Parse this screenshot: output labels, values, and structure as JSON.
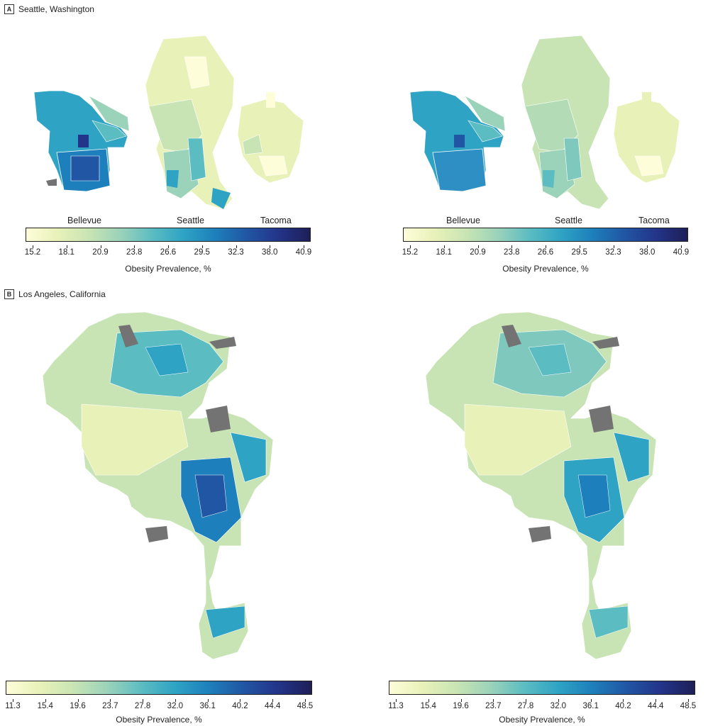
{
  "panelA": {
    "letter": "A",
    "title": "Seattle, Washington",
    "cities": [
      "Bellevue",
      "Seattle",
      "Tacoma"
    ],
    "colorbar": {
      "ticks": [
        "15.2",
        "18.1",
        "20.9",
        "23.8",
        "26.6",
        "29.5",
        "32.3",
        "38.0",
        "40.9"
      ],
      "label": "Obesity Prevalence, %"
    }
  },
  "panelB": {
    "letter": "B",
    "title": "Los Angeles, California",
    "colorbar": {
      "ticks": [
        "11.3",
        "15.4",
        "19.6",
        "23.7",
        "27.8",
        "32.0",
        "36.1",
        "40.2",
        "44.4",
        "48.5"
      ],
      "label": "Obesity Prevalence, %"
    }
  },
  "colors": {
    "ramp": [
      "#fdfdd9",
      "#e8f1b8",
      "#c8e4b4",
      "#9ad2ba",
      "#5bbcc2",
      "#2ea3c4",
      "#1d7fbb",
      "#2156a4",
      "#23348a",
      "#1e1f57"
    ],
    "missing": "#737373"
  }
}
